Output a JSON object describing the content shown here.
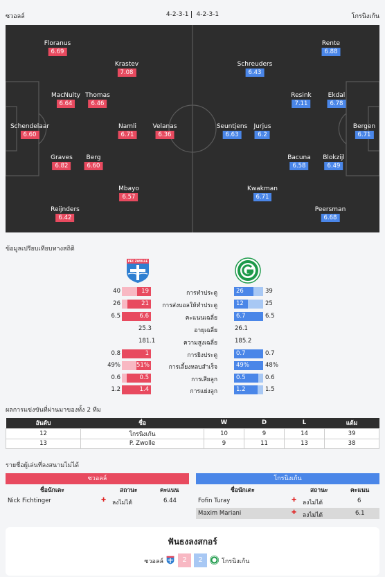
{
  "header": {
    "home_team": "ซวอลล์",
    "away_team": "โกรนิงเก้น",
    "home_formation": "4-2-3-1",
    "away_formation": "4-2-3-1"
  },
  "lineup": {
    "home": [
      {
        "name": "Floranus",
        "rating": "6.69"
      },
      {
        "name": "Krastev",
        "rating": "7.08"
      },
      {
        "name": "MacNulty",
        "rating": "6.64"
      },
      {
        "name": "Thomas",
        "rating": "6.46"
      },
      {
        "name": "Schendelaar",
        "rating": "6.60"
      },
      {
        "name": "Namli",
        "rating": "6.71"
      },
      {
        "name": "Velanas",
        "rating": "6.36"
      },
      {
        "name": "Graves",
        "rating": "6.82"
      },
      {
        "name": "Berg",
        "rating": "6.60"
      },
      {
        "name": "Mbayo",
        "rating": "6.57"
      },
      {
        "name": "Reijnders",
        "rating": "6.42"
      }
    ],
    "away": [
      {
        "name": "Rente",
        "rating": "6.88"
      },
      {
        "name": "Schreuders",
        "rating": "6.43"
      },
      {
        "name": "Resink",
        "rating": "7.11"
      },
      {
        "name": "Ekdal",
        "rating": "6.78"
      },
      {
        "name": "Bergen",
        "rating": "6.71"
      },
      {
        "name": "Seuntjens",
        "rating": "6.63"
      },
      {
        "name": "Jurjus",
        "rating": "6.2"
      },
      {
        "name": "Bacuna",
        "rating": "6.58"
      },
      {
        "name": "Blokzijl",
        "rating": "6.49"
      },
      {
        "name": "Kwakman",
        "rating": "6.71"
      },
      {
        "name": "Peersman",
        "rating": "6.68"
      }
    ]
  },
  "stats": {
    "title": "ข้อมูลเปรียบเทียบทางสถิติ",
    "home_logo_text": "PEC ZWOLLE",
    "rows": [
      {
        "label": "การทำประตู",
        "home_total": "40",
        "home_val": "19",
        "away_val": "26",
        "away_total": "39",
        "home_frac": 0.48,
        "away_frac": 0.67
      },
      {
        "label": "การส่งบอลให้ทำประตู",
        "home_total": "26",
        "home_val": "21",
        "away_val": "12",
        "away_total": "25",
        "home_frac": 0.81,
        "away_frac": 0.48
      },
      {
        "label": "คะแนนเฉลี่ย",
        "home_total": "6.5",
        "home_val": "6.6",
        "away_val": "6.7",
        "away_total": "6.5",
        "home_frac": 1.0,
        "away_frac": 1.0
      },
      {
        "label": "อายุเฉลี่ย",
        "home_total": "",
        "home_val": "25.3",
        "away_val": "26.1",
        "away_total": "",
        "plain": true
      },
      {
        "label": "ความสูงเฉลี่ย",
        "home_total": "",
        "home_val": "181.1",
        "away_val": "185.2",
        "away_total": "",
        "plain": true
      },
      {
        "label": "การยิงประตู",
        "home_total": "0.8",
        "home_val": "1",
        "away_val": "0.7",
        "away_total": "0.7",
        "home_frac": 1.0,
        "away_frac": 1.0
      },
      {
        "label": "การเลี้ยงหลบสำเร็จ",
        "home_total": "49%",
        "home_val": "51%",
        "away_val": "49%",
        "away_total": "48%",
        "home_frac": 0.51,
        "away_frac": 1.0
      },
      {
        "label": "การเสียลูก",
        "home_total": "0.6",
        "home_val": "0.5",
        "away_val": "0.5",
        "away_total": "0.6",
        "home_frac": 0.83,
        "away_frac": 0.83
      },
      {
        "label": "การแย่งลูก",
        "home_total": "1.2",
        "home_val": "1.4",
        "away_val": "1.2",
        "away_total": "1.5",
        "home_frac": 1.0,
        "away_frac": 0.8
      }
    ]
  },
  "standings": {
    "title": "ผลการแข่งขันที่ผ่านมาของทั้ง 2 ทีม",
    "headers": [
      "อันดับ",
      "ชื่อ",
      "W",
      "D",
      "L",
      "แต้ม"
    ],
    "rows": [
      [
        "12",
        "โกรนิงเก้น",
        "10",
        "9",
        "14",
        "39"
      ],
      [
        "13",
        "P. Zwolle",
        "9",
        "11",
        "13",
        "38"
      ]
    ]
  },
  "absent": {
    "title": "รายชื่อผู้เล่นที่ลงสนามไม่ได้",
    "cols": [
      "ชื่อนักเตะ",
      "สถานะ",
      "คะแนน"
    ],
    "home_title": "ซวอลล์",
    "away_title": "โกรนิงเก้น",
    "home": [
      {
        "name": "Nick Fichtinger",
        "status": "ลงไม่ได้",
        "score": "6.44"
      }
    ],
    "away": [
      {
        "name": "Fofin Turay",
        "status": "ลงไม่ได้",
        "score": "6"
      },
      {
        "name": "Maxim Mariani",
        "status": "ลงไม่ได้",
        "score": "6.1"
      }
    ]
  },
  "prediction": {
    "title": "ฟันธงลงสกอร์",
    "home_team": "ซวอลล์",
    "away_team": "โกรนิงเก้น",
    "home_score": "2",
    "away_score": "2"
  },
  "colors": {
    "home": "#e84a5f",
    "away": "#4a86e8",
    "pitch": "#2d2d2d"
  }
}
